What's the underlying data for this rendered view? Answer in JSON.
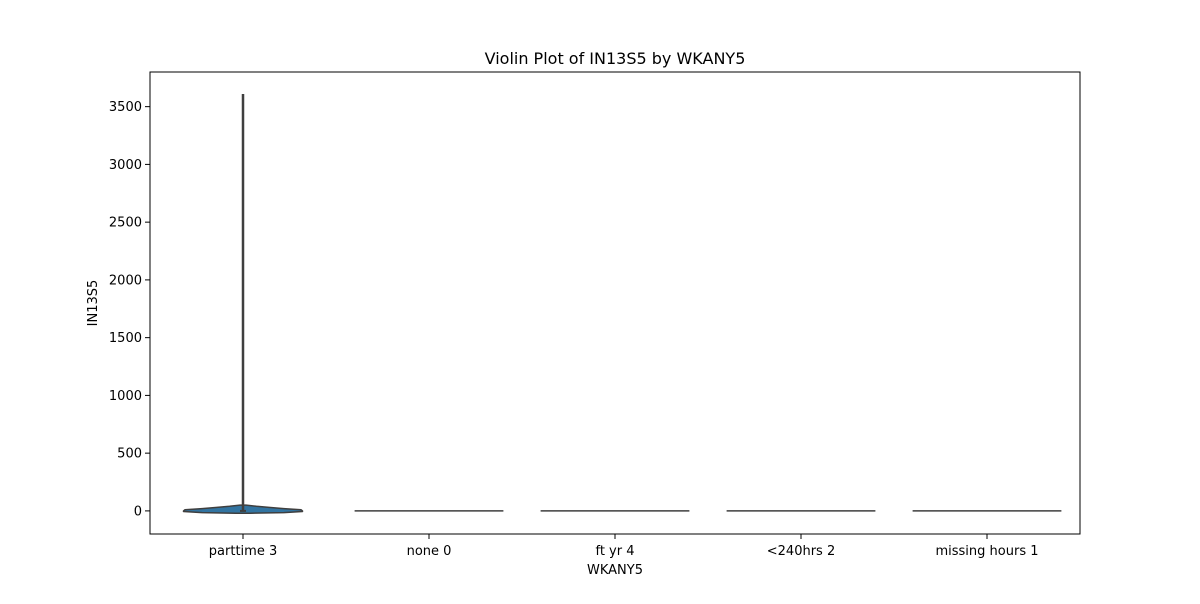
{
  "chart_data": {
    "type": "violin",
    "title": "Violin Plot of IN13S5 by WKANY5",
    "xlabel": "WKANY5",
    "ylabel": "IN13S5",
    "categories": [
      "parttime 3",
      "none 0",
      "ft yr 4",
      "<240hrs 2",
      "missing hours 1"
    ],
    "ylim": [
      -200,
      3800
    ],
    "yticks": [
      0,
      500,
      1000,
      1500,
      2000,
      2500,
      3000,
      3500
    ],
    "grid": false,
    "legend": "none",
    "fill_color": "#3274a1",
    "line_color": "#3f3f3f",
    "violins": [
      {
        "category": "parttime 3",
        "min": 0,
        "max": 3610,
        "q1": 0,
        "median": 0,
        "q3": 0,
        "density": [
          {
            "y": -20,
            "w": 0.1
          },
          {
            "y": -15,
            "w": 0.55
          },
          {
            "y": -5,
            "w": 0.8
          },
          {
            "y": 0,
            "w": 0.8
          },
          {
            "y": 10,
            "w": 0.78
          },
          {
            "y": 20,
            "w": 0.55
          },
          {
            "y": 30,
            "w": 0.35
          },
          {
            "y": 40,
            "w": 0.18
          },
          {
            "y": 50,
            "w": 0.04
          }
        ]
      },
      {
        "category": "none 0",
        "min": 0,
        "max": 0,
        "q1": 0,
        "median": 0,
        "q3": 0,
        "density": []
      },
      {
        "category": "ft yr 4",
        "min": 0,
        "max": 0,
        "q1": 0,
        "median": 0,
        "q3": 0,
        "density": []
      },
      {
        "category": "<240hrs 2",
        "min": 0,
        "max": 0,
        "q1": 0,
        "median": 0,
        "q3": 0,
        "density": []
      },
      {
        "category": "missing hours 1",
        "min": 0,
        "max": 0,
        "q1": 0,
        "median": 0,
        "q3": 0,
        "density": []
      }
    ]
  }
}
